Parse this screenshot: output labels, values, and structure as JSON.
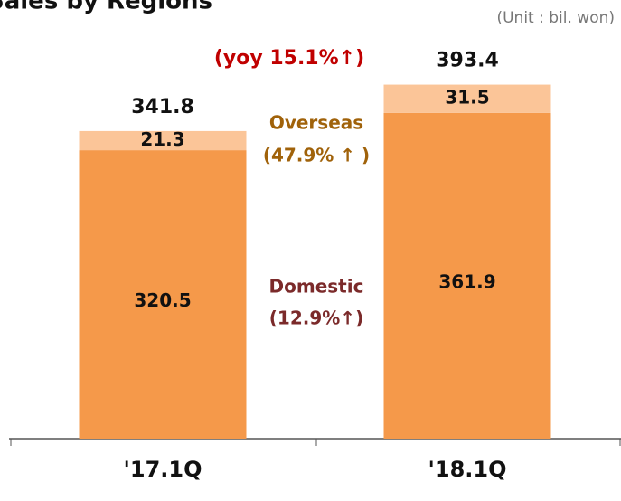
{
  "chart_data": {
    "type": "stacked_bar",
    "title": "Sales by Regions",
    "unit": "(Unit : bil. won)",
    "categories": [
      "'17.1Q",
      "'18.1Q"
    ],
    "series": [
      {
        "name": "Domestic",
        "color": "#f5994a",
        "values": [
          320.5,
          361.9
        ]
      },
      {
        "name": "Overseas",
        "color": "#fbc598",
        "values": [
          21.3,
          31.5
        ]
      }
    ],
    "totals": [
      341.8,
      393.4
    ],
    "ylim": [
      0,
      400
    ],
    "annotations": {
      "yoy": "(yoy  15.1%↑)",
      "overseas_growth": "(47.9% ↑ )",
      "domestic_growth": "(12.9%↑)"
    }
  }
}
